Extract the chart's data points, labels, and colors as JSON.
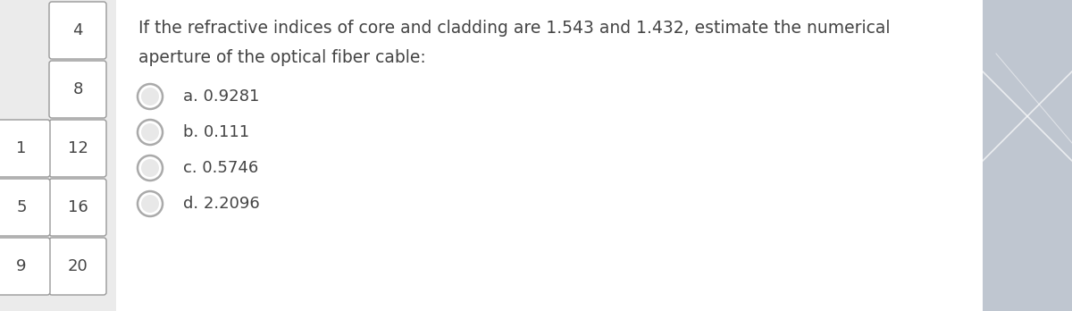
{
  "question_text_line1": "If the refractive indices of core and cladding are 1.543 and 1.432, estimate the numerical",
  "question_text_line2": "aperture of the optical fiber cable:",
  "options": [
    "a. 0.9281",
    "b. 0.111",
    "c. 0.5746",
    "d. 2.2096"
  ],
  "left_numbers": [
    "4",
    "8",
    "12",
    "16",
    "20"
  ],
  "left_partial": [
    "",
    "",
    "1",
    "5",
    "9"
  ],
  "bg_color": "#ebebeb",
  "main_bg": "#ffffff",
  "right_bg": "#bfc6d0",
  "box_color": "#ffffff",
  "box_border": "#999999",
  "text_color": "#444444",
  "radio_outer_color": "#aaaaaa",
  "radio_inner_color": "#e8e8e8",
  "question_fontsize": 13.5,
  "option_fontsize": 13,
  "number_fontsize": 13
}
